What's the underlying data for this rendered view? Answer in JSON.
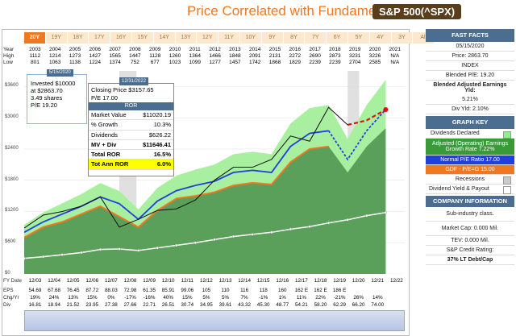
{
  "header": {
    "title": "Price Correlated with Fundamentals",
    "ticker": "S&P 500(^SPX)"
  },
  "tabs": [
    "20Y",
    "19Y",
    "18Y",
    "17Y",
    "16Y",
    "15Y",
    "14Y",
    "13Y",
    "12Y",
    "11Y",
    "10Y",
    "9Y",
    "8Y",
    "7Y",
    "6Y",
    "5Y",
    "4Y",
    "3Y",
    "All"
  ],
  "year_table": {
    "labels": [
      "Year",
      "High",
      "Low"
    ],
    "years": [
      "2003",
      "2004",
      "2005",
      "2006",
      "2007",
      "2008",
      "2009",
      "2010",
      "2011",
      "2012",
      "2013",
      "2014",
      "2015",
      "2016",
      "2017",
      "2018",
      "2019",
      "2020",
      "2021"
    ],
    "high": [
      "1112",
      "1214",
      "1273",
      "1427",
      "1565",
      "1447",
      "1128",
      "1260",
      "1364",
      "1466",
      "1848",
      "2091",
      "2131",
      "2272",
      "2690",
      "2873",
      "3231",
      "3226",
      "N/A"
    ],
    "low": [
      "801",
      "1063",
      "1138",
      "1224",
      "1374",
      "752",
      "677",
      "1023",
      "1099",
      "1277",
      "1457",
      "1742",
      "1868",
      "1829",
      "2239",
      "2239",
      "2704",
      "2585",
      "N/A"
    ]
  },
  "popup_left": {
    "date": "5/15/2020",
    "line1": "Invested $10000",
    "line2": "at $2863.70",
    "line3": "3.49 shares",
    "line4": "P/E 19.20"
  },
  "popup_right": {
    "date": "12/31/2022",
    "line1": "Closing Price $3157.65",
    "line2": "P/E 17.00",
    "ror_label": "ROR",
    "rows": [
      {
        "k": "Market Value",
        "v": "$11020.19"
      },
      {
        "k": "% Growth",
        "v": "10.3%"
      },
      {
        "k": "Dividends",
        "v": "$626.22"
      },
      {
        "k": "MV + Div",
        "v": "$11646.41"
      },
      {
        "k": "Total ROR",
        "v": "16.5%"
      },
      {
        "k": "Tot Ann ROR",
        "v": "6.0%"
      }
    ]
  },
  "bottom_table": {
    "fy_label": "FY Date",
    "fy": [
      "12/03",
      "12/04",
      "12/05",
      "12/06",
      "12/07",
      "12/08",
      "12/09",
      "12/10",
      "12/11",
      "12/12",
      "12/13",
      "12/14",
      "12/15",
      "12/16",
      "12/17",
      "12/18",
      "12/19",
      "12/20",
      "12/21",
      "12/22"
    ],
    "eps_label": "EPS",
    "eps": [
      "54.69",
      "67.68",
      "76.45",
      "87.72",
      "88.03",
      "72.98",
      "61.35",
      "85.91",
      "99.06",
      "105",
      "110",
      "116",
      "118",
      "160",
      "162 E",
      "162 E",
      "186 E",
      "",
      "",
      ""
    ],
    "chg_label": "Chg/Yr",
    "chg": [
      "19%",
      "24%",
      "13%",
      "15%",
      "0%",
      "-17%",
      "-16%",
      "40%",
      "15%",
      "5%",
      "5%",
      "7%",
      "-1%",
      "1%",
      "11%",
      "22%",
      "-21%",
      "26%",
      "14%",
      ""
    ],
    "div_label": "Div",
    "div": [
      "16.81",
      "18.94",
      "21.52",
      "23.95",
      "27.38",
      "27.66",
      "22.71",
      "26.51",
      "30.74",
      "34.95",
      "39.61",
      "43.32",
      "45.30",
      "48.77",
      "54.21",
      "58.20",
      "62.29",
      "66.20",
      "74.00",
      ""
    ]
  },
  "sidebar": {
    "fast_facts": "FAST FACTS",
    "date": "05/15/2020",
    "price": "Price: 2863.70",
    "index": "INDEX",
    "blended_pe": "Blended P/E: 19.20",
    "blended_yld_label": "Blended Adjusted Earnings Yld:",
    "blended_yld": "5.21%",
    "div_yld": "Div Yld: 2.10%",
    "graph_key": "GRAPH KEY",
    "key_dividends": "Dividends Declared",
    "key_adjusted": "Adjusted (Operating) Earnings Growth Rate 7.22%",
    "key_normal": "Normal P/E Ratio 17.00",
    "key_gdf": "GDF - P/E=G 15.00",
    "key_recessions": "Recessions",
    "key_divyield": "Dividend Yield & Payout",
    "company_info": "COMPANY INFORMATION",
    "subindustry": "Sub-industry class.",
    "market_cap": "Market Cap: 0.000 Mil.",
    "tev": "TEV: 0.000 Mil.",
    "sp_rating": "S&P Credit Rating:",
    "lt_debt": "37% LT Debt/Cap"
  },
  "chart_data": {
    "type": "line",
    "y_ticks": [
      "$0",
      "$600",
      "$1200",
      "$1800",
      "$2400",
      "$3000",
      "$3600"
    ],
    "ylim": [
      0,
      3900
    ],
    "x": [
      "2003",
      "2004",
      "2005",
      "2006",
      "2007",
      "2008",
      "2009",
      "2010",
      "2011",
      "2012",
      "2013",
      "2014",
      "2015",
      "2016",
      "2017",
      "2018",
      "2019",
      "2020",
      "2021",
      "2022",
      "2023"
    ],
    "price": [
      880,
      1130,
      1200,
      1300,
      1480,
      900,
      1050,
      1220,
      1250,
      1420,
      1800,
      2050,
      2050,
      2200,
      2650,
      2550,
      3200,
      2863,
      null,
      null,
      null
    ],
    "normal_pe_value": [
      800,
      1000,
      1150,
      1300,
      1480,
      1350,
      1050,
      1400,
      1600,
      1700,
      1780,
      1950,
      1990,
      1950,
      2450,
      2700,
      2750,
      2200,
      2750,
      3160,
      null
    ],
    "earnings_justified": [
      700,
      900,
      1000,
      1150,
      1300,
      1100,
      900,
      1220,
      1450,
      1500,
      1570,
      1700,
      1750,
      1720,
      2150,
      2400,
      2450,
      1950,
      2450,
      2800,
      null
    ],
    "forecast_price": [
      null,
      null,
      null,
      null,
      null,
      null,
      null,
      null,
      null,
      null,
      null,
      null,
      null,
      null,
      null,
      null,
      null,
      2863,
      2950,
      3157,
      null
    ],
    "dividends_line": [
      300,
      330,
      370,
      410,
      470,
      480,
      450,
      500,
      550,
      600,
      660,
      720,
      760,
      800,
      860,
      910,
      980,
      1040,
      1120,
      1180,
      null
    ]
  }
}
